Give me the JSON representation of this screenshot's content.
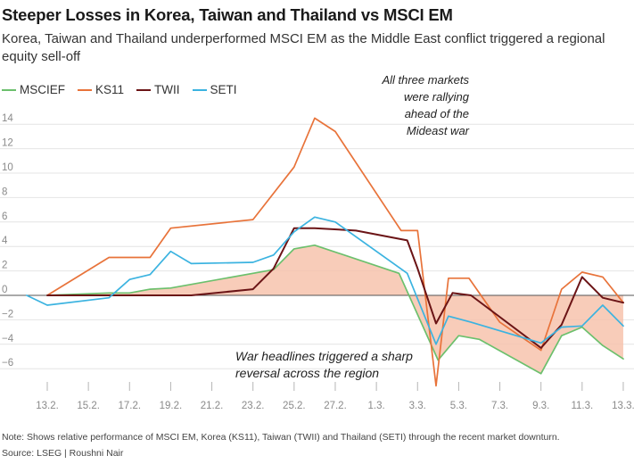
{
  "title": "Steeper Losses in Korea, Taiwan and Thailand vs MSCI EM",
  "subtitle": "Korea, Taiwan and Thailand underperformed MSCI EM as the Middle East conflict triggered a regional equity sell-off",
  "note": "Note: Shows relative performance of MSCI EM, Korea (KS11), Taiwan (TWII) and Thailand (SETI) through the recent market downturn.",
  "source": "Source: LSEG  | Roushni Nair",
  "chart_data": {
    "type": "line",
    "title": "Steeper Losses in Korea, Taiwan and Thailand vs MSCI EM",
    "xlabel": "",
    "ylabel": "",
    "ylim": [
      -8,
      15
    ],
    "grid": true,
    "legend_position": "top-left",
    "x_tick_labels": [
      "13.2.",
      "15.2.",
      "17.2.",
      "19.2.",
      "21.2.",
      "23.2.",
      "25.2.",
      "27.2.",
      "1.3.",
      "3.3.",
      "5.3.",
      "7.3.",
      "9.3.",
      "11.3.",
      "13.3."
    ],
    "x_tick_positions": [
      0,
      2,
      4,
      6,
      8,
      10,
      12,
      14,
      16,
      18,
      20,
      22,
      24,
      26,
      28
    ],
    "y_ticks": [
      14,
      12,
      10,
      8,
      6,
      4,
      2,
      0,
      -2,
      -4,
      -6
    ],
    "y_tick_labels": [
      "14",
      "12",
      "10",
      "8",
      "6",
      "4",
      "2",
      "0",
      "−2",
      "−4",
      "−6"
    ],
    "shading": {
      "between": "MSCIEF",
      "and": 0,
      "color": "#f7c3ad"
    },
    "series": [
      {
        "name": "MSCIEF",
        "color": "#6cc06d",
        "x": [
          0,
          3,
          4,
          5,
          6,
          11,
          12,
          13,
          17.1,
          19,
          20,
          21,
          24,
          25,
          26,
          27,
          28
        ],
        "values": [
          0,
          0.2,
          0.2,
          0.5,
          0.6,
          2.1,
          3.8,
          4.1,
          1.8,
          -5.3,
          -3.3,
          -3.6,
          -6.4,
          -3.3,
          -2.6,
          -4.1,
          -5.2
        ]
      },
      {
        "name": "KS11",
        "color": "#e8733a",
        "x": [
          0,
          3,
          5,
          6,
          10,
          12,
          13,
          14,
          17.2,
          18,
          18.9,
          19.5,
          20.5,
          22,
          24,
          25,
          26,
          27,
          28
        ],
        "values": [
          0,
          3.1,
          3.1,
          5.5,
          6.2,
          10.5,
          14.5,
          13.4,
          5.3,
          5.3,
          -7.4,
          1.4,
          1.4,
          -2.2,
          -4.5,
          0.5,
          1.9,
          1.5,
          -0.6
        ]
      },
      {
        "name": "TWII",
        "color": "#6b1416",
        "x": [
          0,
          7,
          10,
          11,
          12,
          13,
          15,
          17.5,
          18,
          18.9,
          19.7,
          20.6,
          24,
          25,
          26,
          27,
          28
        ],
        "values": [
          0,
          0,
          0.5,
          2.2,
          5.5,
          5.5,
          5.3,
          4.5,
          2.2,
          -2.3,
          0.2,
          0,
          -4.3,
          -2.4,
          1.5,
          -0.2,
          -0.6
        ]
      },
      {
        "name": "SETI",
        "color": "#3bb3e0",
        "x": [
          -1,
          0,
          3,
          4,
          5,
          6,
          7,
          10,
          11,
          12,
          13,
          14,
          17.5,
          18.9,
          19.5,
          20.6,
          24,
          25,
          26,
          27,
          28
        ],
        "values": [
          0,
          -0.8,
          -0.2,
          1.3,
          1.7,
          3.6,
          2.6,
          2.7,
          3.3,
          5.2,
          6.4,
          6,
          1.8,
          -4,
          -1.7,
          -2.2,
          -3.9,
          -2.6,
          -2.5,
          -0.8,
          -2.5
        ]
      }
    ],
    "annotations": [
      {
        "id": "rally",
        "lines": [
          "All three markets",
          "were rallying",
          "ahead of the",
          "Mideast war"
        ]
      },
      {
        "id": "reversal",
        "lines": [
          "War headlines triggered a sharp",
          "reversal across the region"
        ]
      }
    ]
  }
}
